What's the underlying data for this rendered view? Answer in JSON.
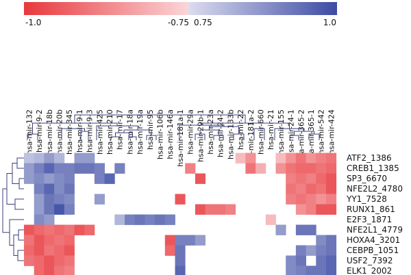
{
  "chart_data": {
    "type": "heatmap",
    "title": "",
    "color_scale": {
      "min": -1.0,
      "max": 1.0,
      "tick_labels": [
        "-1.0",
        "-0.75",
        "0.75",
        "1.0"
      ],
      "neutral_band": [
        -0.75,
        0.75
      ],
      "low_color": "#e8383d",
      "high_color": "#3c4ba3",
      "mid_color": "#ffffff"
    },
    "columns": [
      "hsa-mir-132",
      "hsa-mir-9-2",
      "hsa-mir-18b",
      "hsa-mir-20b",
      "hsa-mir-345",
      "hsa-mir-9-1",
      "hsa-mir-9-3",
      "hsa-mir-425",
      "hsa-mir-210",
      "hsa-mir-17",
      "hsa-mir-18a",
      "hsa-mir-19a",
      "hsa-mir-95",
      "hsa-mir-106b",
      "hsa-mir-146a",
      "hsa-mir-181a-1",
      "hsa-mir-29a",
      "hsa-mir-29b-1",
      "hsa-mir-23a",
      "hsa-mir-24-2",
      "hsa-mir-133b",
      "hsa-mir-22",
      "hsa-mir-181a-2",
      "hsa-mir-660",
      "hsa-mir-21",
      "hsa-mir-155",
      "hsa-mir-24-1",
      "hsa-mir-365-2",
      "hsa-mir-365-1",
      "hsa-mir-542",
      "hsa-mir-424"
    ],
    "rows": [
      "ATF2_1386",
      "CREB1_1385",
      "SP3_6670",
      "NFE2L2_4780",
      "YY1_7528",
      "RUNX1_861",
      "E2F3_1871",
      "NFE2L1_4779",
      "HOXA4_3201",
      "CEBPB_1051",
      "USF2_7392",
      "ELK1_2002"
    ],
    "values": [
      [
        0.78,
        0.8,
        0.85,
        0.8,
        0,
        0.85,
        0.85,
        0,
        0,
        0,
        0,
        0,
        0,
        0,
        0,
        0,
        0,
        0,
        0,
        0,
        0,
        -0.78,
        -0.85,
        0,
        0,
        -0.78,
        -0.85,
        -0.9,
        -0.85,
        -0.88,
        -0.9
      ],
      [
        0.85,
        0.9,
        0.95,
        0.9,
        0.9,
        0.92,
        0.92,
        0.9,
        0,
        0.9,
        0,
        0,
        0,
        0,
        0,
        0,
        -0.88,
        0,
        0,
        0,
        0,
        0,
        -0.9,
        -0.8,
        0,
        -0.85,
        -0.9,
        -0.92,
        -0.92,
        -0.9,
        -0.92
      ],
      [
        0.85,
        0.88,
        0.85,
        0.88,
        0.9,
        0,
        0,
        0.9,
        0.95,
        0,
        0,
        0,
        0,
        0,
        0,
        0,
        0,
        -0.95,
        0,
        0,
        0,
        0,
        0,
        0,
        0,
        0,
        -0.88,
        -0.9,
        -0.88,
        -0.92,
        -0.95
      ],
      [
        0,
        0.9,
        0.95,
        0.88,
        0.92,
        0,
        0,
        0,
        0,
        0,
        0,
        0,
        0,
        0,
        0,
        0,
        0,
        0,
        0,
        0,
        0,
        0,
        0,
        0,
        0,
        0,
        -0.9,
        -0.88,
        -0.92,
        -0.9,
        -0.95
      ],
      [
        0,
        0.85,
        0.92,
        0.9,
        0.88,
        0,
        0,
        0.85,
        0,
        0,
        0,
        0,
        0,
        0,
        0,
        -0.95,
        0,
        0,
        0,
        0,
        0,
        0,
        0,
        0,
        0,
        0,
        -0.88,
        -0.9,
        -0.88,
        -0.85,
        -0.88
      ],
      [
        0,
        0.85,
        0.92,
        0.98,
        0.9,
        0,
        0,
        0,
        0,
        0,
        0,
        0,
        0,
        0,
        0,
        0,
        0,
        -0.95,
        -0.9,
        -0.9,
        -0.88,
        0,
        0,
        0,
        0,
        0,
        0,
        -0.85,
        -0.88,
        -0.95,
        -0.95
      ],
      [
        0,
        0.88,
        0.85,
        0,
        0,
        0,
        0,
        0,
        0,
        0.8,
        0.9,
        0.92,
        0.9,
        0.92,
        0.9,
        0,
        0,
        0,
        0,
        0,
        0,
        0,
        0,
        0,
        -0.78,
        0,
        0,
        0,
        0,
        0,
        0
      ],
      [
        -0.95,
        -0.92,
        -0.9,
        -0.92,
        -0.9,
        -0.95,
        -0.92,
        0,
        0,
        0,
        0,
        0,
        0,
        0,
        0,
        0,
        0,
        0,
        0,
        0,
        0,
        0,
        0,
        0,
        0,
        0.85,
        0,
        0.92,
        0.92,
        0,
        0
      ],
      [
        -0.9,
        -0.95,
        -0.92,
        -0.9,
        -0.92,
        0,
        0,
        0,
        0,
        0,
        0,
        0,
        0,
        0,
        -0.95,
        0.9,
        0.9,
        0.85,
        0,
        0,
        0,
        0,
        0,
        0,
        0,
        0,
        0,
        0,
        0,
        0.88,
        0.92
      ],
      [
        -0.92,
        -0.95,
        -0.9,
        -0.92,
        -0.95,
        0,
        0,
        0,
        0,
        0,
        0,
        0,
        0,
        0,
        -0.92,
        0.92,
        0,
        0,
        0,
        0,
        0,
        0,
        0,
        0,
        0,
        0,
        0,
        0.9,
        0.85,
        0.9,
        0.92
      ],
      [
        -0.9,
        -0.92,
        -0.95,
        -0.92,
        -0.9,
        0,
        0,
        0,
        0,
        0,
        0,
        0,
        0,
        0,
        0,
        0.92,
        0,
        0,
        0,
        0,
        0,
        0,
        0,
        0,
        0,
        0,
        0.88,
        0.92,
        0,
        0.92,
        0.95
      ],
      [
        0,
        -0.92,
        -0.95,
        -0.9,
        -0.88,
        0,
        0,
        0,
        0,
        0,
        0,
        0,
        0,
        0,
        0,
        0.95,
        0,
        0,
        0,
        0,
        0,
        0,
        0,
        0,
        0,
        0,
        0.88,
        0.9,
        0.92,
        0.92,
        0.95
      ]
    ]
  }
}
